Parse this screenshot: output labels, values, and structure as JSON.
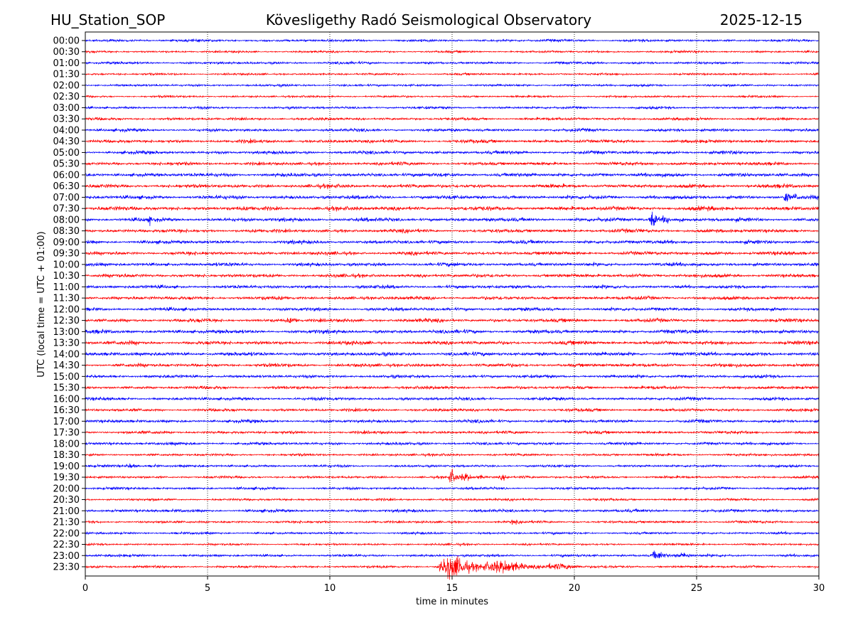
{
  "chart_data": {
    "type": "line",
    "title_left": "HU_Station_SOP",
    "title": "Kövesligethy Radó Seismological Observatory",
    "title_right": "2025-12-15",
    "xlabel": "time in minutes",
    "ylabel": "UTC (local time = UTC + 01:00)",
    "xlim": [
      0,
      30
    ],
    "xticks": [
      0,
      5,
      10,
      15,
      20,
      25,
      30
    ],
    "grid": "vertical dotted at 5-minute intervals",
    "row_labels": [
      "00:00",
      "00:30",
      "01:00",
      "01:30",
      "02:00",
      "02:30",
      "03:00",
      "03:30",
      "04:00",
      "04:30",
      "05:00",
      "05:30",
      "06:00",
      "06:30",
      "07:00",
      "07:30",
      "08:00",
      "08:30",
      "09:00",
      "09:30",
      "10:00",
      "10:30",
      "11:00",
      "11:30",
      "12:00",
      "12:30",
      "13:00",
      "13:30",
      "14:00",
      "14:30",
      "15:00",
      "15:30",
      "16:00",
      "16:30",
      "17:00",
      "17:30",
      "18:00",
      "18:30",
      "19:00",
      "19:30",
      "20:00",
      "20:30",
      "21:00",
      "21:30",
      "22:00",
      "22:30",
      "23:00",
      "23:30"
    ],
    "series_colors": [
      "#0000ff",
      "#ff0000"
    ],
    "base_noise": [
      1.2,
      1.0,
      1.2,
      1.0,
      1.1,
      1.0,
      1.2,
      1.3,
      1.4,
      1.6,
      1.6,
      1.6,
      1.8,
      1.8,
      1.8,
      2.0,
      1.8,
      1.7,
      1.7,
      1.7,
      1.7,
      1.7,
      1.6,
      1.7,
      1.6,
      1.7,
      1.8,
      1.8,
      1.8,
      1.7,
      1.5,
      1.5,
      1.5,
      1.4,
      1.5,
      1.4,
      1.4,
      1.2,
      1.2,
      1.2,
      1.2,
      1.1,
      1.4,
      1.2,
      1.1,
      1.0,
      1.2,
      1.2
    ],
    "events": [
      {
        "row": "07:00",
        "start": 28.5,
        "end": 30,
        "amplitude": 9
      },
      {
        "row": "08:00",
        "start": 2.6,
        "end": 3.0,
        "amplitude": 7
      },
      {
        "row": "08:00",
        "start": 23.0,
        "end": 25.0,
        "amplitude": 10
      },
      {
        "row": "12:30",
        "start": 8.0,
        "end": 12.5,
        "amplitude": 4
      },
      {
        "row": "19:00",
        "start": 1.5,
        "end": 5.2,
        "amplitude": 3
      },
      {
        "row": "19:30",
        "start": 14.8,
        "end": 16.8,
        "amplitude": 10
      },
      {
        "row": "19:30",
        "start": 16.8,
        "end": 20.0,
        "amplitude": 3.5
      },
      {
        "row": "21:30",
        "start": 17.4,
        "end": 18.0,
        "amplitude": 5
      },
      {
        "row": "23:00",
        "start": 23.0,
        "end": 27.0,
        "amplitude": 6
      },
      {
        "row": "23:30",
        "start": 14.3,
        "end": 21.6,
        "amplitude": 15
      }
    ]
  }
}
